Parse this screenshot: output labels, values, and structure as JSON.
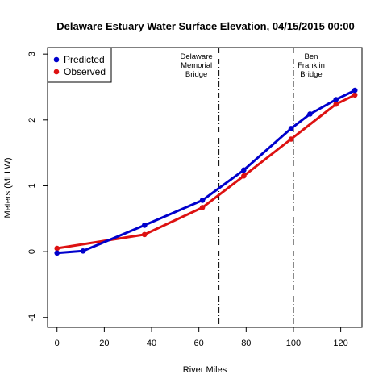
{
  "chart_data": {
    "type": "line",
    "title": "Delaware Estuary Water Surface Elevation,  04/15/2015 00:00",
    "xlabel": "River Miles",
    "ylabel": "Meters (MLLW)",
    "xlim": [
      -4,
      129
    ],
    "ylim": [
      -1.15,
      3.1
    ],
    "x_ticks": [
      0,
      20,
      40,
      60,
      80,
      100,
      120
    ],
    "y_ticks": [
      -1,
      0,
      1,
      2,
      3
    ],
    "grid": false,
    "legend_position": "top-left",
    "series": [
      {
        "name": "Predicted",
        "color": "#0000cc",
        "x": [
          0,
          11,
          37,
          61.5,
          79,
          99,
          107,
          118,
          126
        ],
        "y": [
          -0.02,
          0.01,
          0.4,
          0.78,
          1.24,
          1.87,
          2.09,
          2.31,
          2.45
        ]
      },
      {
        "name": "Observed",
        "color": "#dd1111",
        "x": [
          0,
          37,
          61.5,
          79,
          99,
          118,
          126
        ],
        "y": [
          0.05,
          0.26,
          0.67,
          1.15,
          1.71,
          2.24,
          2.38
        ]
      }
    ],
    "reference_lines": [
      {
        "x": 68.5,
        "label_lines": [
          "Delaware",
          "Memorial",
          "Bridge"
        ],
        "label_side": "left"
      },
      {
        "x": 100,
        "label_lines": [
          "Ben",
          "Franklin",
          "Bridge"
        ],
        "label_side": "right"
      }
    ]
  }
}
